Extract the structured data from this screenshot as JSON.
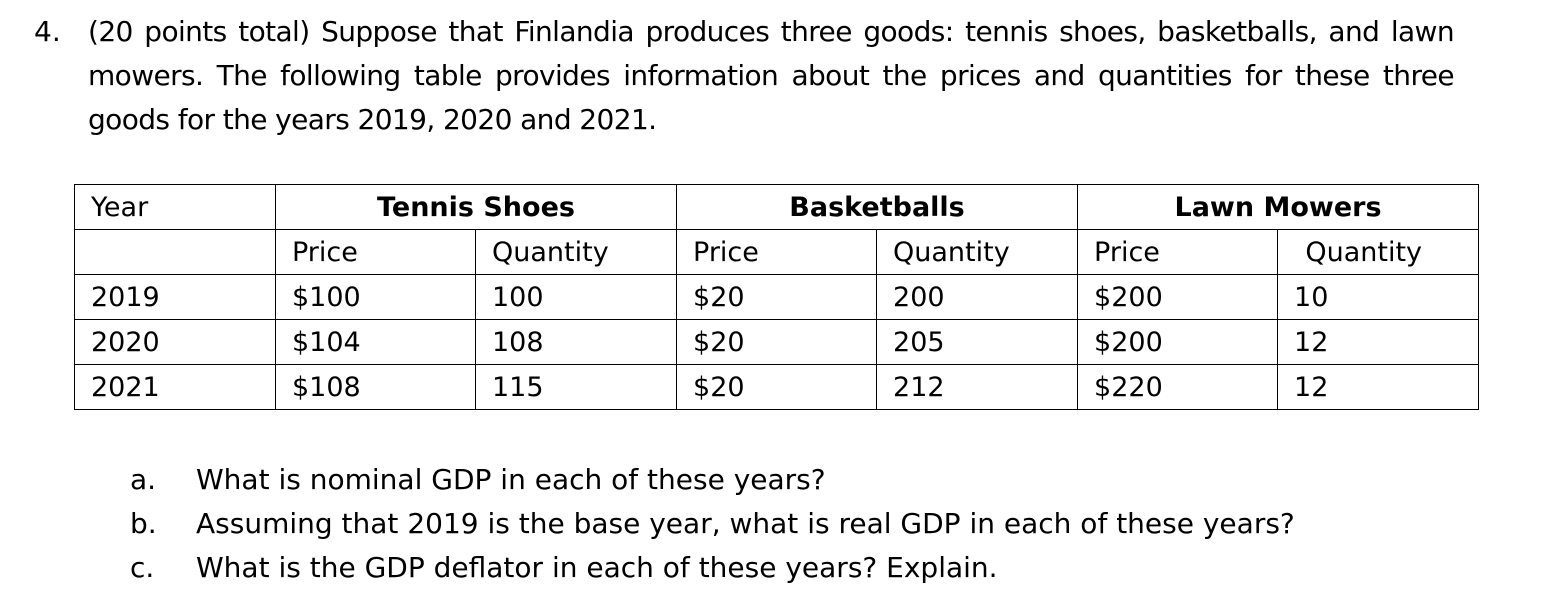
{
  "question": {
    "number": "4.",
    "text": "(20 points total) Suppose that Finlandia produces three goods: tennis shoes, basketballs, and lawn mowers. The following table provides information about the prices and quantities for these three goods for the years 2019, 2020 and 2021."
  },
  "table": {
    "year_header": "Year",
    "groups": [
      "Tennis Shoes",
      "Basketballs",
      "Lawn Mowers"
    ],
    "sub_headers": [
      "Price",
      "Quantity",
      "Price",
      "Quantity",
      "Price",
      "Quantity"
    ],
    "rows": [
      {
        "year": "2019",
        "cells": [
          "$100",
          "100",
          "$20",
          "200",
          "$200",
          "10"
        ]
      },
      {
        "year": "2020",
        "cells": [
          "$104",
          "108",
          "$20",
          "205",
          "$200",
          "12"
        ]
      },
      {
        "year": "2021",
        "cells": [
          "$108",
          "115",
          "$20",
          "212",
          "$220",
          "12"
        ]
      }
    ]
  },
  "sub_questions": [
    {
      "marker": "a.",
      "text": "What is nominal GDP in each of these years?"
    },
    {
      "marker": "b.",
      "text": "Assuming that 2019 is the base year, what is real GDP in each of these years?"
    },
    {
      "marker": "c.",
      "text": "What is the GDP deflator in each of these years? Explain."
    }
  ]
}
